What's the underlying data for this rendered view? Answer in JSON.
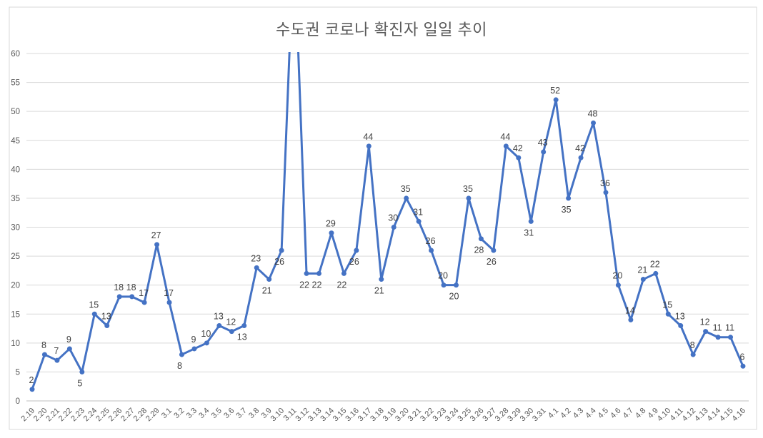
{
  "title": "수도권 코로나 확진자 일일 추이",
  "chart_data": {
    "type": "line",
    "title": "수도권 코로나 확진자 일일 추이",
    "x_labels": [
      "2.19",
      "2.20",
      "2.21",
      "2.22",
      "2.23",
      "2.24",
      "2.25",
      "2.26",
      "2.27",
      "2.28",
      "2.29",
      "3.1",
      "3.2",
      "3.3",
      "3.4",
      "3.5",
      "3.6",
      "3.7",
      "3.8",
      "3.9",
      "3.10",
      "3.11",
      "3.12",
      "3.13",
      "3.14",
      "3.15",
      "3.16",
      "3.17",
      "3.18",
      "3.19",
      "3.20",
      "3.21",
      "3.22",
      "3.23",
      "3.24",
      "3.25",
      "3.26",
      "3.27",
      "3.28",
      "3.29",
      "3.30",
      "3.31",
      "4.1",
      "4.2",
      "4.3",
      "4.4",
      "4.5",
      "4.6",
      "4.7",
      "4.8",
      "4.9",
      "4.10",
      "4.11",
      "4.12",
      "4.13",
      "4.14",
      "4.15",
      "4.16"
    ],
    "values": [
      2,
      8,
      7,
      9,
      5,
      15,
      13,
      18,
      18,
      17,
      27,
      17,
      8,
      9,
      10,
      13,
      12,
      13,
      23,
      21,
      26,
      null,
      22,
      22,
      29,
      22,
      26,
      44,
      21,
      30,
      35,
      31,
      26,
      20,
      20,
      35,
      28,
      26,
      44,
      42,
      31,
      43,
      52,
      35,
      42,
      48,
      36,
      20,
      14,
      21,
      22,
      15,
      13,
      8,
      12,
      11,
      11,
      6
    ],
    "off_scale_index": 21,
    "off_scale_draw_value": 80,
    "label_below_indices": [
      4,
      12,
      17,
      19,
      20,
      22,
      23,
      25,
      26,
      28,
      34,
      36,
      37,
      40,
      43
    ],
    "ylim": [
      0,
      60
    ],
    "ytick_step": 5,
    "ytick_labels": [
      "0",
      "5",
      "10",
      "15",
      "20",
      "25",
      "30",
      "35",
      "40",
      "45",
      "50",
      "55",
      "60"
    ],
    "grid": true,
    "legend": "none",
    "series_color": "#4472C4",
    "gridline_color": "#D9D9D9",
    "axis_line_color": "#BFBFBF",
    "border_color": "#D9D9D9",
    "data_label_color": "#404040",
    "axis_text_color": "#595959"
  }
}
